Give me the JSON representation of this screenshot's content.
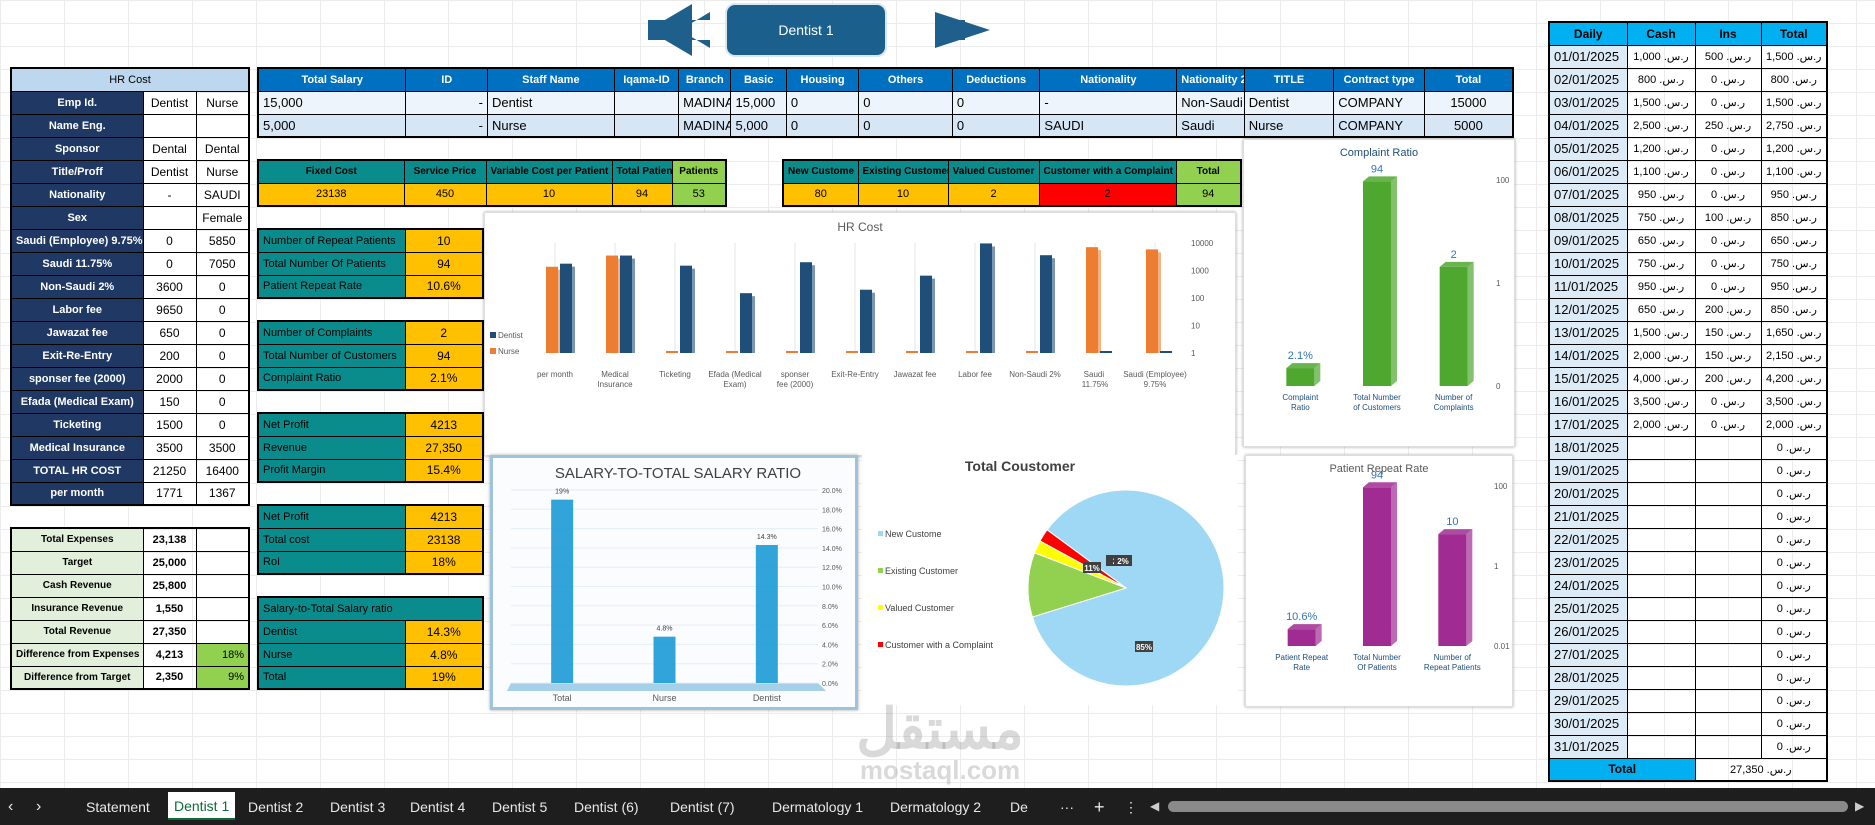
{
  "banner": {
    "title": "Dentist 1"
  },
  "hr_cost": {
    "title": "HR Cost",
    "rows": [
      [
        "Emp Id.",
        "Dentist",
        "Nurse"
      ],
      [
        "Name Eng.",
        "",
        ""
      ],
      [
        "Sponsor",
        "Dental",
        "Dental"
      ],
      [
        "Title/Proff",
        "Dentist",
        "Nurse"
      ],
      [
        "Nationality",
        "-",
        "SAUDI"
      ],
      [
        "Sex",
        "",
        "Female"
      ],
      [
        "Saudi (Employee) 9.75%",
        "0",
        "5850"
      ],
      [
        "Saudi  11.75%",
        "0",
        "7050"
      ],
      [
        "Non-Saudi 2%",
        "3600",
        "0"
      ],
      [
        "Labor fee",
        "9650",
        "0"
      ],
      [
        "Jawazat fee",
        "650",
        "0"
      ],
      [
        "Exit-Re-Entry",
        "200",
        "0"
      ],
      [
        "sponser fee (2000)",
        "2000",
        "0"
      ],
      [
        "Efada (Medical Exam)",
        "150",
        "0"
      ],
      [
        "Ticketing",
        "1500",
        "0"
      ],
      [
        "Medical Insurance",
        "3500",
        "3500"
      ],
      [
        "TOTAL HR COST",
        "21250",
        "16400"
      ],
      [
        "per month",
        "1771",
        "1367"
      ]
    ]
  },
  "summary": {
    "rows": [
      [
        "Total Expenses",
        "23,138",
        ""
      ],
      [
        "Target",
        "25,000",
        ""
      ],
      [
        "Cash Revenue",
        "25,800",
        ""
      ],
      [
        "Insurance Revenue",
        "1,550",
        ""
      ],
      [
        "Total Revenue",
        "27,350",
        ""
      ],
      [
        "Difference from Expenses",
        "4,213",
        "18%"
      ],
      [
        "Difference from Target",
        "2,350",
        "9%"
      ]
    ]
  },
  "staff": {
    "headers": [
      "Total Salary",
      "ID",
      "Staff Name",
      "Iqama-ID",
      "Branch",
      "Basic",
      "Housing",
      "Others",
      "Deductions",
      "Nationality",
      "Nationality 2",
      "TITLE",
      "Contract type",
      "Total"
    ],
    "rows": [
      [
        "15,000",
        "-",
        "Dentist",
        "",
        "MADINA",
        "15,000",
        "0",
        "0",
        "0",
        "-",
        "Non-Saudi",
        "Dentist",
        "COMPANY",
        "15000"
      ],
      [
        "5,000",
        "-",
        "Nurse",
        "",
        "MADINA",
        "5,000",
        "0",
        "0",
        "0",
        "SAUDI",
        "Saudi",
        "Nurse",
        "COMPANY",
        "5000"
      ]
    ]
  },
  "costs": {
    "headers": [
      "Fixed Cost",
      "Service Price",
      "Variable Cost per Patient",
      "Total Patients",
      "Patients"
    ],
    "values": [
      "23138",
      "450",
      "10",
      "94",
      "53"
    ]
  },
  "customers": {
    "headers": [
      "New Custome",
      "Existing Customer",
      "Valued Customer",
      "Customer with a Complaint",
      "Total"
    ],
    "values": [
      "80",
      "10",
      "2",
      "2",
      "94"
    ]
  },
  "kpi1": [
    [
      "Number of Repeat Patients",
      "10"
    ],
    [
      "Total Number Of Patients",
      "94"
    ],
    [
      "Patient Repeat Rate",
      "10.6%"
    ]
  ],
  "kpi2": [
    [
      "Number of Complaints",
      "2"
    ],
    [
      "Total Number of Customers",
      "94"
    ],
    [
      "Complaint Ratio",
      "2.1%"
    ]
  ],
  "kpi3": [
    [
      "Net Profit",
      "4213"
    ],
    [
      " Revenue",
      "27,350"
    ],
    [
      "Profit Margin",
      "15.4%"
    ]
  ],
  "kpi4": [
    [
      "Net Profit",
      "4213"
    ],
    [
      "Total cost",
      "23138"
    ],
    [
      "RoI",
      "18%"
    ]
  ],
  "kpi5": {
    "title": "Salary-to-Total Salary ratio",
    "rows": [
      [
        "Dentist",
        "14.3%"
      ],
      [
        "Nurse",
        "4.8%"
      ],
      [
        "Total",
        "19%"
      ]
    ]
  },
  "daily": {
    "headers": [
      "Daily",
      "Cash",
      "Ins",
      "Total"
    ],
    "rows": [
      [
        "01/01/2025",
        "ر.س. 1,000",
        "ر.س. 500",
        "ر.س. 1,500"
      ],
      [
        "02/01/2025",
        "ر.س. 800",
        "ر.س. 0",
        "ر.س. 800"
      ],
      [
        "03/01/2025",
        "ر.س. 1,500",
        "ر.س. 0",
        "ر.س. 1,500"
      ],
      [
        "04/01/2025",
        "ر.س. 2,500",
        "ر.س. 250",
        "ر.س. 2,750"
      ],
      [
        "05/01/2025",
        "ر.س. 1,200",
        "ر.س. 0",
        "ر.س. 1,200"
      ],
      [
        "06/01/2025",
        "ر.س. 1,100",
        "ر.س. 0",
        "ر.س. 1,100"
      ],
      [
        "07/01/2025",
        "ر.س. 950",
        "ر.س. 0",
        "ر.س. 950"
      ],
      [
        "08/01/2025",
        "ر.س. 750",
        "ر.س. 100",
        "ر.س. 850"
      ],
      [
        "09/01/2025",
        "ر.س. 650",
        "ر.س. 0",
        "ر.س. 650"
      ],
      [
        "10/01/2025",
        "ر.س. 750",
        "ر.س. 0",
        "ر.س. 750"
      ],
      [
        "11/01/2025",
        "ر.س. 950",
        "ر.س. 0",
        "ر.س. 950"
      ],
      [
        "12/01/2025",
        "ر.س. 650",
        "ر.س. 200",
        "ر.س. 850"
      ],
      [
        "13/01/2025",
        "ر.س. 1,500",
        "ر.س. 150",
        "ر.س. 1,650"
      ],
      [
        "14/01/2025",
        "ر.س. 2,000",
        "ر.س. 150",
        "ر.س. 2,150"
      ],
      [
        "15/01/2025",
        "ر.س. 4,000",
        "ر.س. 200",
        "ر.س. 4,200"
      ],
      [
        "16/01/2025",
        "ر.س. 3,500",
        "ر.س. 0",
        "ر.س. 3,500"
      ],
      [
        "17/01/2025",
        "ر.س. 2,000",
        "ر.س. 0",
        "ر.س. 2,000"
      ],
      [
        "18/01/2025",
        "",
        "",
        "ر.س. 0"
      ],
      [
        "19/01/2025",
        "",
        "",
        "ر.س. 0"
      ],
      [
        "20/01/2025",
        "",
        "",
        "ر.س. 0"
      ],
      [
        "21/01/2025",
        "",
        "",
        "ر.س. 0"
      ],
      [
        "22/01/2025",
        "",
        "",
        "ر.س. 0"
      ],
      [
        "23/01/2025",
        "",
        "",
        "ر.س. 0"
      ],
      [
        "24/01/2025",
        "",
        "",
        "ر.س. 0"
      ],
      [
        "25/01/2025",
        "",
        "",
        "ر.س. 0"
      ],
      [
        "26/01/2025",
        "",
        "",
        "ر.س. 0"
      ],
      [
        "27/01/2025",
        "",
        "",
        "ر.س. 0"
      ],
      [
        "28/01/2025",
        "",
        "",
        "ر.س. 0"
      ],
      [
        "29/01/2025",
        "",
        "",
        "ر.س. 0"
      ],
      [
        "30/01/2025",
        "",
        "",
        "ر.س. 0"
      ],
      [
        "31/01/2025",
        "",
        "",
        "ر.س. 0"
      ]
    ],
    "total_label": "Total",
    "total_value": "ر.س. 27,350"
  },
  "tabs": [
    "Statement",
    "Dentist 1",
    "Dentist 2",
    "Dentist 3",
    "Dentist 4",
    "Dentist 5",
    "Dentist  (6)",
    "Dentist  (7)",
    "Dermatology 1",
    "Dermatology 2",
    "De"
  ],
  "tab_more": "···",
  "tab_add": "+",
  "watermark": {
    "line1": "مستقل",
    "line2": "mostaql.com"
  },
  "colors": {
    "navy": "#1f3864",
    "blue": "#0070c0",
    "teal": "#0b8c8c",
    "yellow": "#ffc000",
    "green": "#92d050",
    "dark_bar": "#1f4e79",
    "orange": "#ed7d31",
    "purple": "#a02b93",
    "chart_green": "#4ea72e"
  },
  "chart_data": [
    {
      "type": "bar",
      "title": "HR Cost",
      "log_scale": true,
      "categories": [
        "per month",
        "Medical Insurance",
        "Ticketing",
        "Efada (Medical Exam)",
        "sponser fee (2000)",
        "Exit-Re-Entry",
        "Jawazat fee",
        "Labor fee",
        "Non-Saudi 2%",
        "Saudi  11.75%",
        "Saudi (Employee) 9.75%"
      ],
      "series": [
        {
          "name": "Dentist",
          "values": [
            1771,
            3500,
            1500,
            150,
            2000,
            200,
            650,
            9650,
            3600,
            0,
            0
          ]
        },
        {
          "name": "Nurse",
          "values": [
            1367,
            3500,
            0,
            0,
            0,
            0,
            0,
            0,
            0,
            7050,
            5850
          ]
        }
      ],
      "y_ticks": [
        "10000",
        "1000",
        "100",
        "10",
        "1"
      ],
      "legend": "left"
    },
    {
      "type": "bar",
      "title": "SALARY-TO-TOTAL SALARY RATIO",
      "categories": [
        "Total",
        "Nurse",
        "Dentist"
      ],
      "values": [
        19,
        4.8,
        14.3
      ],
      "data_labels": [
        "19%",
        "4.8%",
        "14.3%"
      ],
      "y_ticks": [
        "20.0%",
        "18.0%",
        "16.0%",
        "14.0%",
        "12.0%",
        "10.0%",
        "8.0%",
        "6.0%",
        "4.0%",
        "2.0%",
        "0.0%"
      ],
      "ylim": [
        0,
        20
      ]
    },
    {
      "type": "pie",
      "title": "Total  Coustomer",
      "labels": [
        "New Custome",
        "Existing Customer",
        "Valued Customer",
        "Customer with a Complaint"
      ],
      "values": [
        80,
        10,
        2,
        2
      ],
      "data_labels": [
        "85%",
        "11%",
        "2",
        "2%"
      ],
      "colors": [
        "#9fd8f5",
        "#92d050",
        "#ffff00",
        "#ff0000"
      ],
      "legend": "left"
    },
    {
      "type": "bar",
      "title": "Complaint Ratio",
      "log_scale": true,
      "categories": [
        "Complaint Ratio",
        "Total Number of Customers",
        "Number of Complaints"
      ],
      "values": [
        0.021,
        94,
        2
      ],
      "data_labels": [
        "2.1%",
        "94",
        "2"
      ],
      "y_ticks": [
        "100",
        "1",
        "0"
      ]
    },
    {
      "type": "bar",
      "title": "Patient Repeat Rate",
      "log_scale": true,
      "categories": [
        "Patient Repeat Rate",
        "Total Number Of Patients",
        "Number of Repeat Patients"
      ],
      "values": [
        0.106,
        94,
        10
      ],
      "data_labels": [
        "10.6%",
        "94",
        "10"
      ],
      "y_ticks": [
        "100",
        "1",
        "0.01"
      ]
    }
  ]
}
